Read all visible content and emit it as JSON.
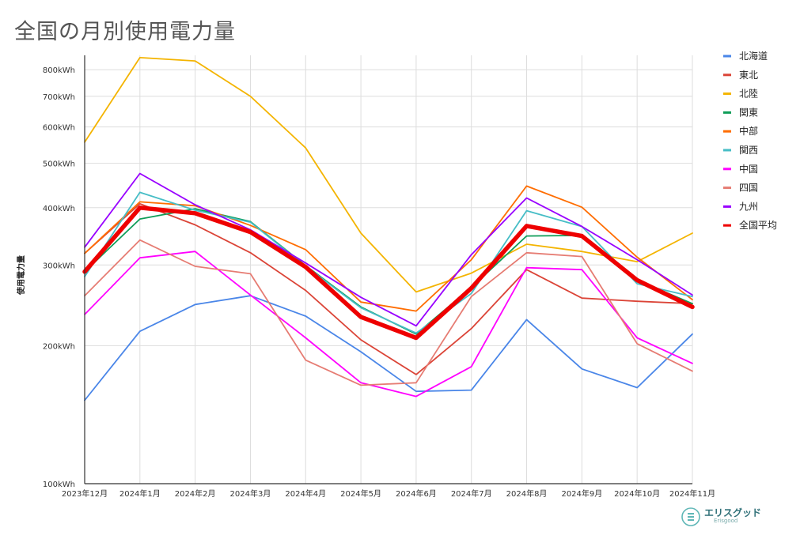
{
  "page": {
    "title": "全国の月別使用電力量"
  },
  "logo": {
    "name": "エリスグッド",
    "sub": "Erisgood"
  },
  "chart_data": {
    "type": "line",
    "title": "全国の月別使用電力量",
    "ylabel": "使用電力量",
    "xlabel": "",
    "yscale": "log",
    "ylim": [
      100,
      860
    ],
    "grid": true,
    "legend_position": "right",
    "y_ticks": [
      {
        "value": 100,
        "label": "100kWh"
      },
      {
        "value": 200,
        "label": "200kWh"
      },
      {
        "value": 300,
        "label": "300kWh"
      },
      {
        "value": 400,
        "label": "400kWh"
      },
      {
        "value": 500,
        "label": "500kWh"
      },
      {
        "value": 600,
        "label": "600kWh"
      },
      {
        "value": 700,
        "label": "700kWh"
      },
      {
        "value": 800,
        "label": "800kWh"
      }
    ],
    "categories": [
      "2023年12月",
      "2024年1月",
      "2024年2月",
      "2024年3月",
      "2024年4月",
      "2024年5月",
      "2024年6月",
      "2024年7月",
      "2024年8月",
      "2024年9月",
      "2024年10月",
      "2024年11月"
    ],
    "series": [
      {
        "name": "北海道",
        "color": "#4a86e8",
        "values": [
          152,
          215,
          246,
          257,
          232,
          194,
          159,
          160,
          228,
          178,
          162,
          212
        ]
      },
      {
        "name": "東北",
        "color": "#db4437",
        "values": [
          318,
          408,
          367,
          319,
          264,
          206,
          173,
          218,
          293,
          254,
          250,
          247
        ]
      },
      {
        "name": "北陸",
        "color": "#f4b400",
        "values": [
          556,
          850,
          836,
          700,
          540,
          352,
          262,
          288,
          333,
          321,
          305,
          352
        ]
      },
      {
        "name": "関東",
        "color": "#0f9d58",
        "values": [
          290,
          378,
          398,
          373,
          299,
          243,
          212,
          268,
          347,
          348,
          278,
          247
        ]
      },
      {
        "name": "中部",
        "color": "#ff6d00",
        "values": [
          318,
          412,
          404,
          366,
          324,
          249,
          238,
          308,
          446,
          401,
          312,
          252
        ]
      },
      {
        "name": "関西",
        "color": "#46bdc6",
        "values": [
          283,
          432,
          395,
          372,
          298,
          242,
          213,
          260,
          394,
          364,
          273,
          256
        ]
      },
      {
        "name": "中国",
        "color": "#ff00ff",
        "values": [
          234,
          311,
          321,
          258,
          208,
          166,
          155,
          180,
          296,
          293,
          208,
          183
        ]
      },
      {
        "name": "四国",
        "color": "#e67c73",
        "values": [
          257,
          340,
          298,
          287,
          186,
          164,
          166,
          256,
          319,
          313,
          202,
          176
        ]
      },
      {
        "name": "九州",
        "color": "#9900ff",
        "values": [
          328,
          475,
          406,
          358,
          303,
          255,
          221,
          316,
          420,
          364,
          308,
          258
        ]
      },
      {
        "name": "全国平均",
        "color": "#ee0000",
        "values": [
          290,
          400,
          389,
          354,
          297,
          231,
          208,
          267,
          365,
          347,
          278,
          243
        ]
      }
    ]
  }
}
